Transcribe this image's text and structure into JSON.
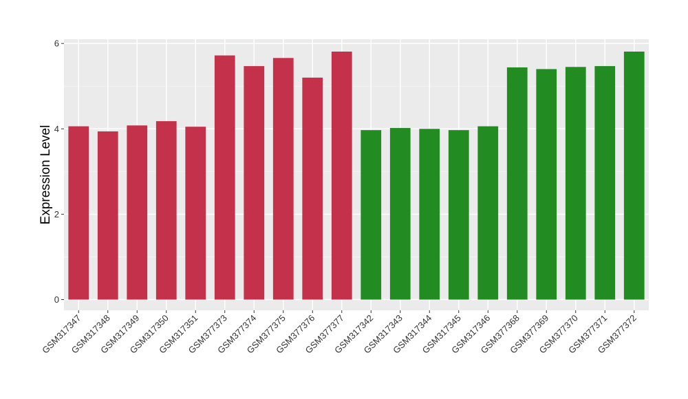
{
  "chart_data": {
    "type": "bar",
    "title": "",
    "xlabel": "",
    "ylabel": "Expression Level",
    "ylim": [
      -0.25,
      6.1
    ],
    "yticks": [
      0,
      2,
      4,
      6
    ],
    "grid": true,
    "legend": "none",
    "panel_background": "#ebebeb",
    "categories": [
      "GSM317347",
      "GSM317348",
      "GSM317349",
      "GSM317350",
      "GSM317351",
      "GSM377373",
      "GSM377374",
      "GSM377375",
      "GSM377376",
      "GSM377377",
      "GSM317342",
      "GSM317343",
      "GSM317344",
      "GSM317345",
      "GSM317346",
      "GSM377368",
      "GSM377369",
      "GSM377370",
      "GSM377371",
      "GSM377372"
    ],
    "values": [
      4.06,
      3.94,
      4.08,
      4.18,
      4.05,
      5.72,
      5.47,
      5.66,
      5.2,
      5.81,
      3.97,
      4.02,
      4.0,
      3.97,
      4.06,
      5.44,
      5.4,
      5.45,
      5.47,
      5.81
    ],
    "colors": [
      "#c4314a",
      "#c4314a",
      "#c4314a",
      "#c4314a",
      "#c4314a",
      "#c4314a",
      "#c4314a",
      "#c4314a",
      "#c4314a",
      "#c4314a",
      "#228b22",
      "#228b22",
      "#228b22",
      "#228b22",
      "#228b22",
      "#228b22",
      "#228b22",
      "#228b22",
      "#228b22",
      "#228b22"
    ]
  }
}
